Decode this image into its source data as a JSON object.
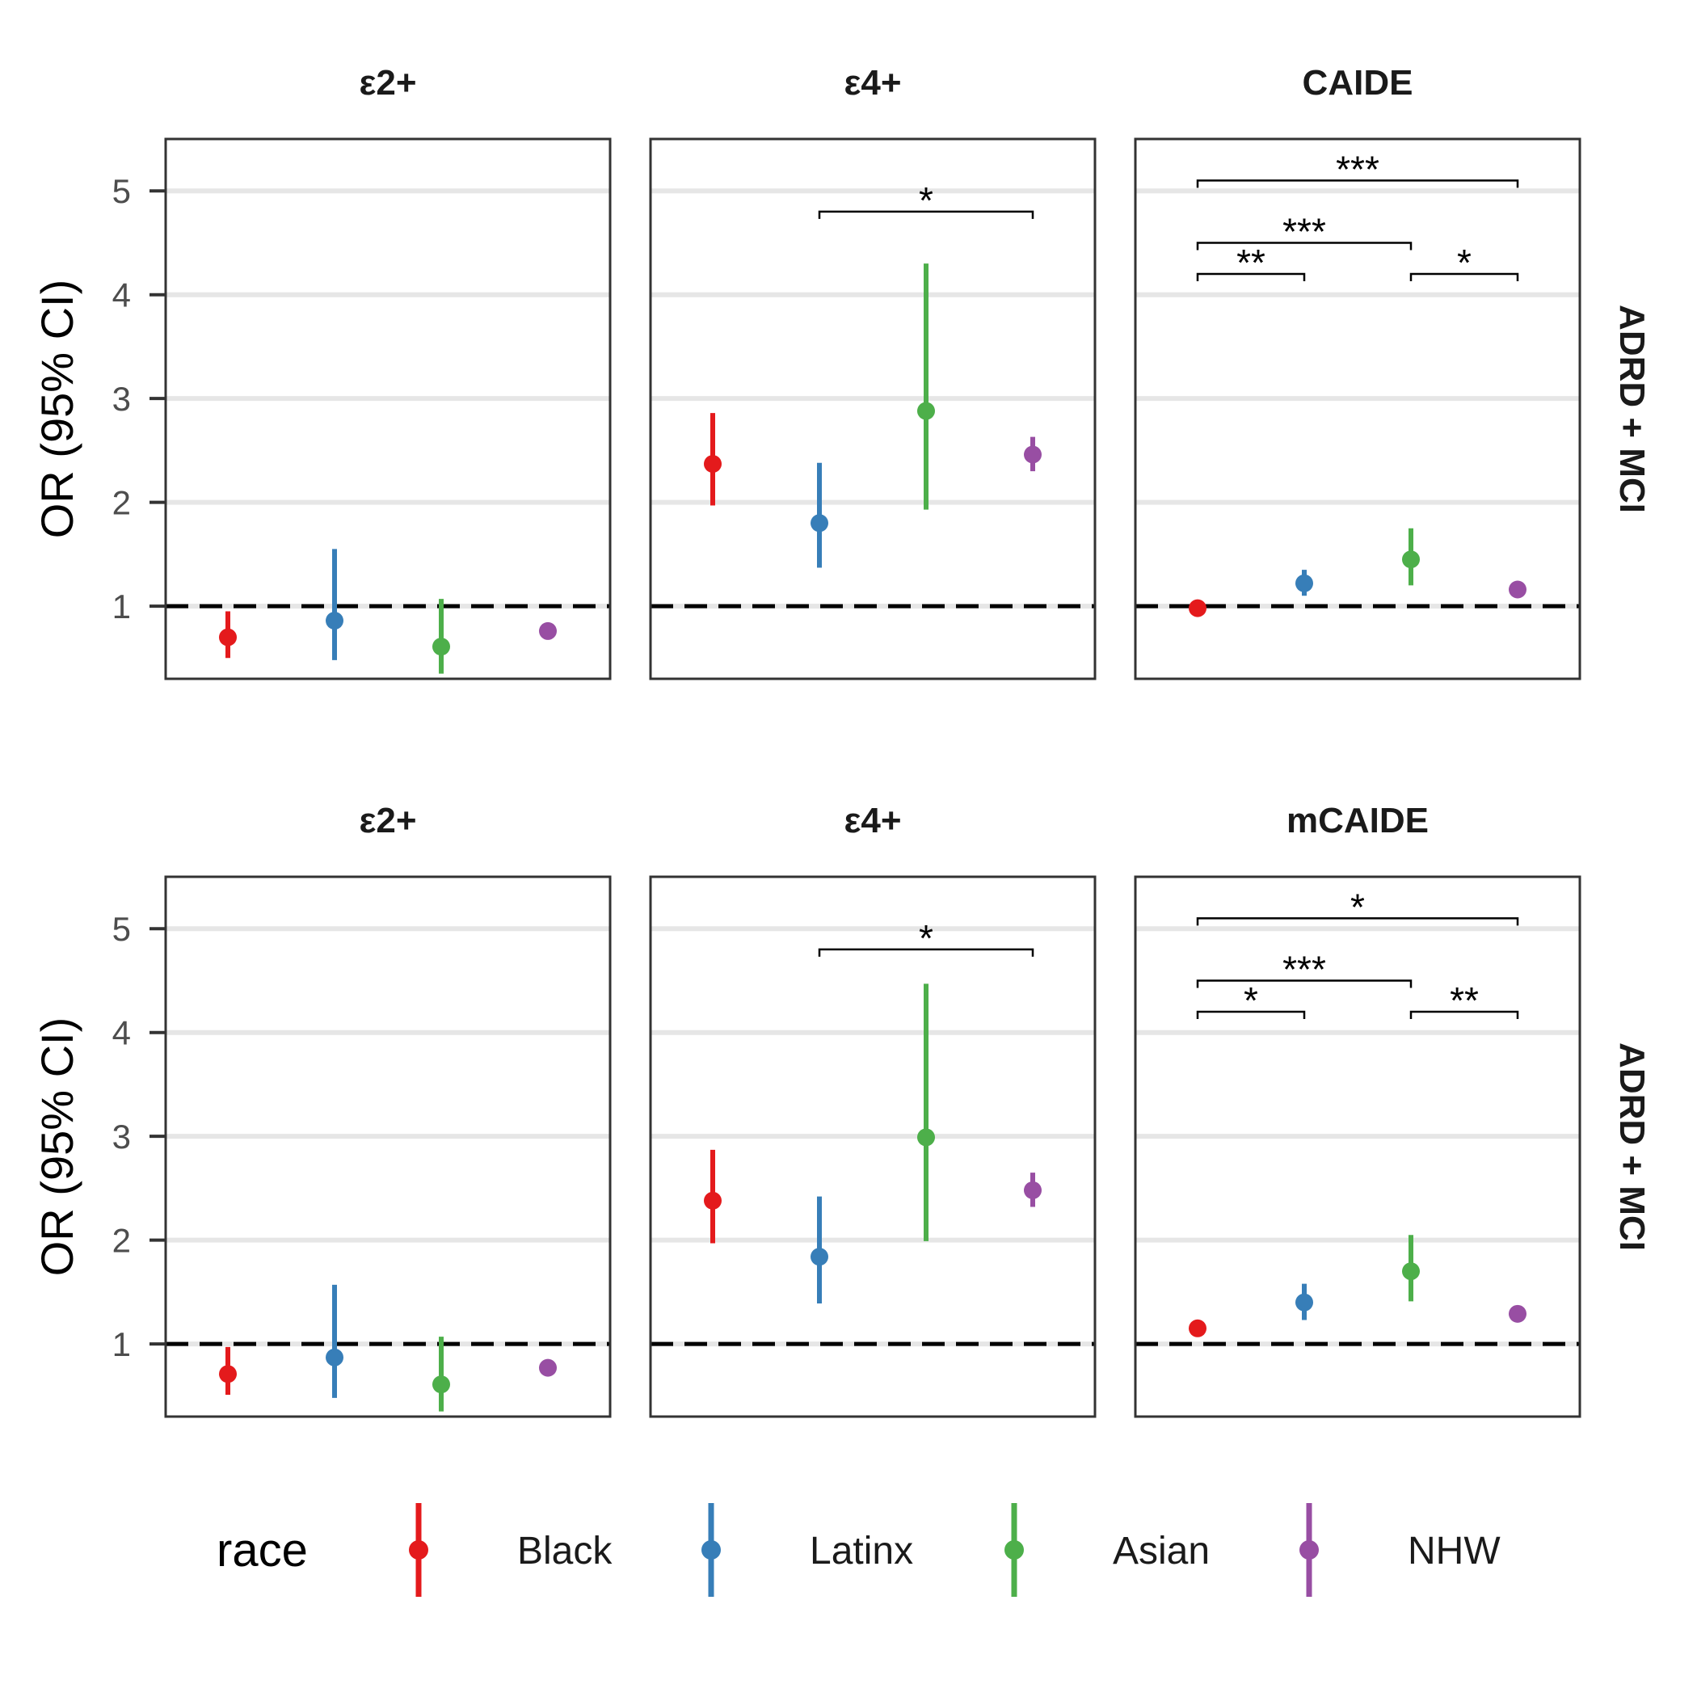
{
  "legend": {
    "title": "race",
    "items": [
      {
        "label": "Black",
        "color": "#e41a1c"
      },
      {
        "label": "Latinx",
        "color": "#377eb8"
      },
      {
        "label": "Asian",
        "color": "#4daf4a"
      },
      {
        "label": "NHW",
        "color": "#984ea3"
      }
    ]
  },
  "chart_data": [
    {
      "type": "scatter",
      "row": "ADRD + MCI",
      "ylabel": "OR (95% CI)",
      "ylim": [
        0.3,
        5.5
      ],
      "yticks": [
        1,
        2,
        3,
        4,
        5
      ],
      "reference_line": 1,
      "grid": "horizontal",
      "categories": [
        "Black",
        "Latinx",
        "Asian",
        "NHW"
      ],
      "facets": [
        {
          "title": "ε2+",
          "points": [
            {
              "race": "Black",
              "or": 0.7,
              "lo": 0.5,
              "hi": 0.95
            },
            {
              "race": "Latinx",
              "or": 0.86,
              "lo": 0.48,
              "hi": 1.55
            },
            {
              "race": "Asian",
              "or": 0.61,
              "lo": 0.35,
              "hi": 1.07
            },
            {
              "race": "NHW",
              "or": 0.76,
              "lo": 0.72,
              "hi": 0.8
            }
          ],
          "brackets": []
        },
        {
          "title": "ε4+",
          "points": [
            {
              "race": "Black",
              "or": 2.37,
              "lo": 1.97,
              "hi": 2.86
            },
            {
              "race": "Latinx",
              "or": 1.8,
              "lo": 1.37,
              "hi": 2.38
            },
            {
              "race": "Asian",
              "or": 2.88,
              "lo": 1.93,
              "hi": 4.3
            },
            {
              "race": "NHW",
              "or": 2.46,
              "lo": 2.3,
              "hi": 2.63
            }
          ],
          "brackets": [
            {
              "from": "Latinx",
              "to": "NHW",
              "label": "*",
              "y": 4.8
            }
          ]
        },
        {
          "title": "CAIDE",
          "points": [
            {
              "race": "Black",
              "or": 0.98,
              "lo": 0.93,
              "hi": 1.03
            },
            {
              "race": "Latinx",
              "or": 1.22,
              "lo": 1.1,
              "hi": 1.35
            },
            {
              "race": "Asian",
              "or": 1.45,
              "lo": 1.2,
              "hi": 1.75
            },
            {
              "race": "NHW",
              "or": 1.16,
              "lo": 1.12,
              "hi": 1.2
            }
          ],
          "brackets": [
            {
              "from": "Black",
              "to": "NHW",
              "label": "***",
              "y": 5.1
            },
            {
              "from": "Black",
              "to": "Asian",
              "label": "***",
              "y": 4.5
            },
            {
              "from": "Black",
              "to": "Latinx",
              "label": "**",
              "y": 4.2
            },
            {
              "from": "Asian",
              "to": "NHW",
              "label": "*",
              "y": 4.2
            }
          ]
        }
      ]
    },
    {
      "type": "scatter",
      "row": "ADRD + MCI",
      "ylabel": "OR (95% CI)",
      "ylim": [
        0.3,
        5.5
      ],
      "yticks": [
        1,
        2,
        3,
        4,
        5
      ],
      "reference_line": 1,
      "grid": "horizontal",
      "categories": [
        "Black",
        "Latinx",
        "Asian",
        "NHW"
      ],
      "facets": [
        {
          "title": "ε2+",
          "points": [
            {
              "race": "Black",
              "or": 0.71,
              "lo": 0.51,
              "hi": 0.97
            },
            {
              "race": "Latinx",
              "or": 0.87,
              "lo": 0.48,
              "hi": 1.57
            },
            {
              "race": "Asian",
              "or": 0.61,
              "lo": 0.35,
              "hi": 1.07
            },
            {
              "race": "NHW",
              "or": 0.77,
              "lo": 0.73,
              "hi": 0.81
            }
          ],
          "brackets": []
        },
        {
          "title": "ε4+",
          "points": [
            {
              "race": "Black",
              "or": 2.38,
              "lo": 1.97,
              "hi": 2.87
            },
            {
              "race": "Latinx",
              "or": 1.84,
              "lo": 1.39,
              "hi": 2.42
            },
            {
              "race": "Asian",
              "or": 2.99,
              "lo": 1.99,
              "hi": 4.47
            },
            {
              "race": "NHW",
              "or": 2.48,
              "lo": 2.32,
              "hi": 2.65
            }
          ],
          "brackets": [
            {
              "from": "Latinx",
              "to": "NHW",
              "label": "*",
              "y": 4.8
            }
          ]
        },
        {
          "title": "mCAIDE",
          "points": [
            {
              "race": "Black",
              "or": 1.15,
              "lo": 1.09,
              "hi": 1.22
            },
            {
              "race": "Latinx",
              "or": 1.4,
              "lo": 1.23,
              "hi": 1.58
            },
            {
              "race": "Asian",
              "or": 1.7,
              "lo": 1.41,
              "hi": 2.05
            },
            {
              "race": "NHW",
              "or": 1.29,
              "lo": 1.25,
              "hi": 1.33
            }
          ],
          "brackets": [
            {
              "from": "Black",
              "to": "NHW",
              "label": "*",
              "y": 5.1
            },
            {
              "from": "Black",
              "to": "Asian",
              "label": "***",
              "y": 4.5
            },
            {
              "from": "Black",
              "to": "Latinx",
              "label": "*",
              "y": 4.2
            },
            {
              "from": "Asian",
              "to": "NHW",
              "label": "**",
              "y": 4.2
            }
          ]
        }
      ]
    }
  ]
}
